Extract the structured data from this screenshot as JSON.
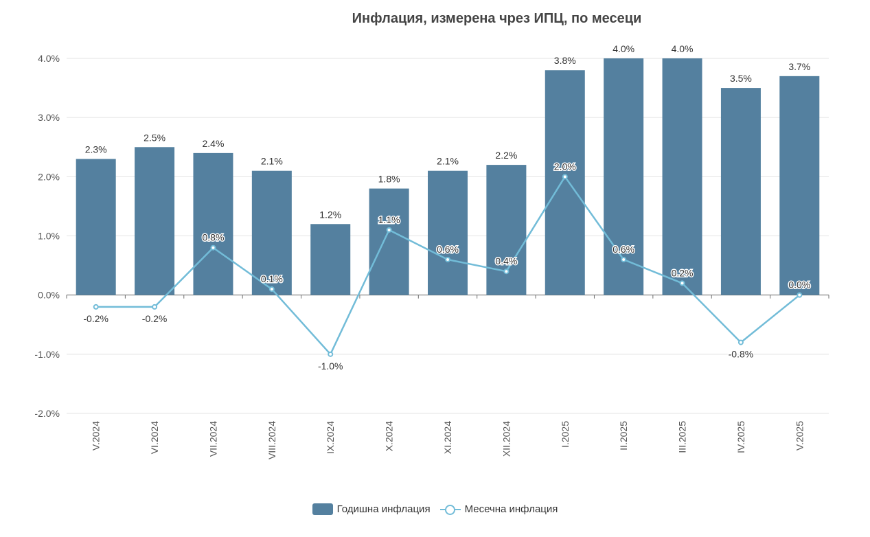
{
  "chart_data": {
    "type": "bar",
    "title": "Инфлация, измерена чрез ИПЦ, по месеци",
    "categories": [
      "V.2024",
      "VI.2024",
      "VII.2024",
      "VIII.2024",
      "IX.2024",
      "X.2024",
      "XI.2024",
      "XII.2024",
      "I.2025",
      "II.2025",
      "III.2025",
      "IV.2025",
      "V.2025"
    ],
    "ylim": [
      -2.0,
      4.0
    ],
    "yticks": [
      -2.0,
      -1.0,
      0.0,
      1.0,
      2.0,
      3.0,
      4.0
    ],
    "ytick_labels": [
      "-2.0%",
      "-1.0%",
      "0.0%",
      "1.0%",
      "2.0%",
      "3.0%",
      "4.0%"
    ],
    "grid": true,
    "legend_position": "bottom-center",
    "series": [
      {
        "name": "Годишна инфлация",
        "type": "bar",
        "color": "#54809f",
        "values": [
          2.3,
          2.5,
          2.4,
          2.1,
          1.2,
          1.8,
          2.1,
          2.2,
          3.8,
          4.0,
          4.0,
          3.5,
          3.7
        ],
        "labels": [
          "2.3%",
          "2.5%",
          "2.4%",
          "2.1%",
          "1.2%",
          "1.8%",
          "2.1%",
          "2.2%",
          "3.8%",
          "4.0%",
          "4.0%",
          "3.5%",
          "3.7%"
        ]
      },
      {
        "name": "Месечна инфлация",
        "type": "line",
        "color": "#72bcd8",
        "values": [
          -0.2,
          -0.2,
          0.8,
          0.1,
          -1.0,
          1.1,
          0.6,
          0.4,
          2.0,
          0.6,
          0.2,
          -0.8,
          0.0
        ],
        "labels": [
          "-0.2%",
          "-0.2%",
          "0.8%",
          "0.1%",
          "-1.0%",
          "1.1%",
          "0.6%",
          "0.4%",
          "2.0%",
          "0.6%",
          "0.2%",
          "-0.8%",
          "0.0%"
        ]
      }
    ]
  }
}
